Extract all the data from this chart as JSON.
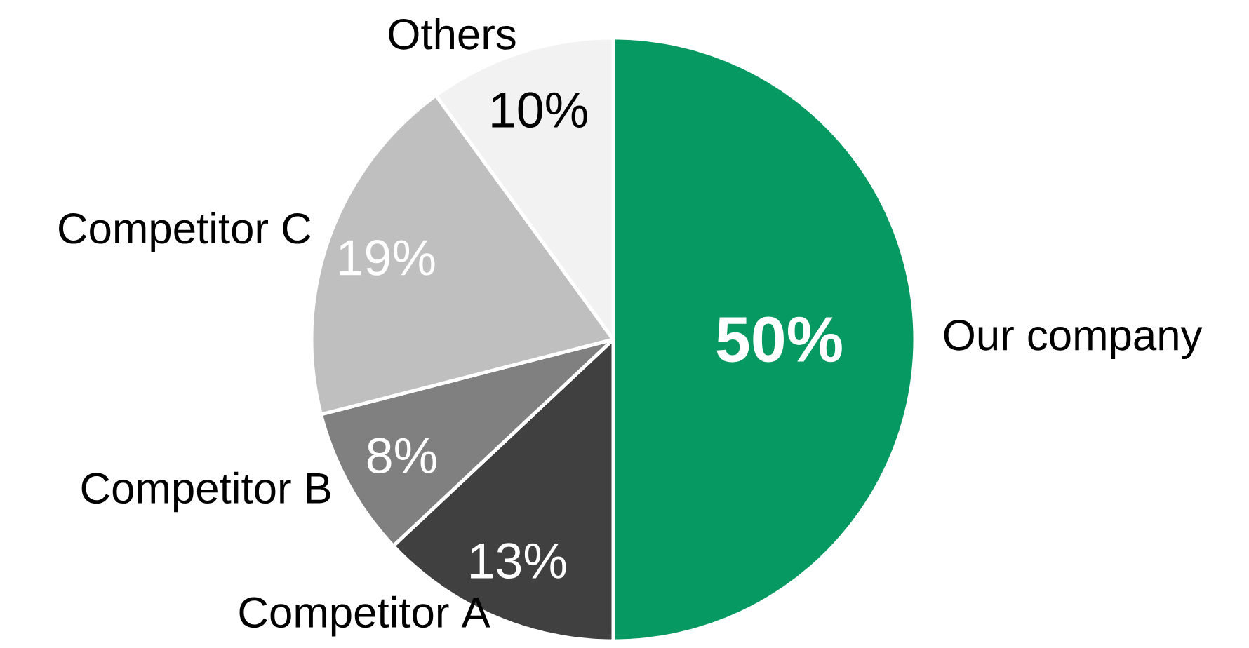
{
  "chart_data": {
    "type": "pie",
    "categories": [
      "Our company",
      "Competitor A",
      "Competitor B",
      "Competitor C",
      "Others"
    ],
    "values": [
      50,
      13,
      8,
      19,
      10
    ],
    "colors": [
      "#069a62",
      "#404040",
      "#808080",
      "#bfbfbf",
      "#f2f2f2"
    ],
    "value_labels": [
      "50%",
      "13%",
      "8%",
      "19%",
      "10%"
    ]
  }
}
